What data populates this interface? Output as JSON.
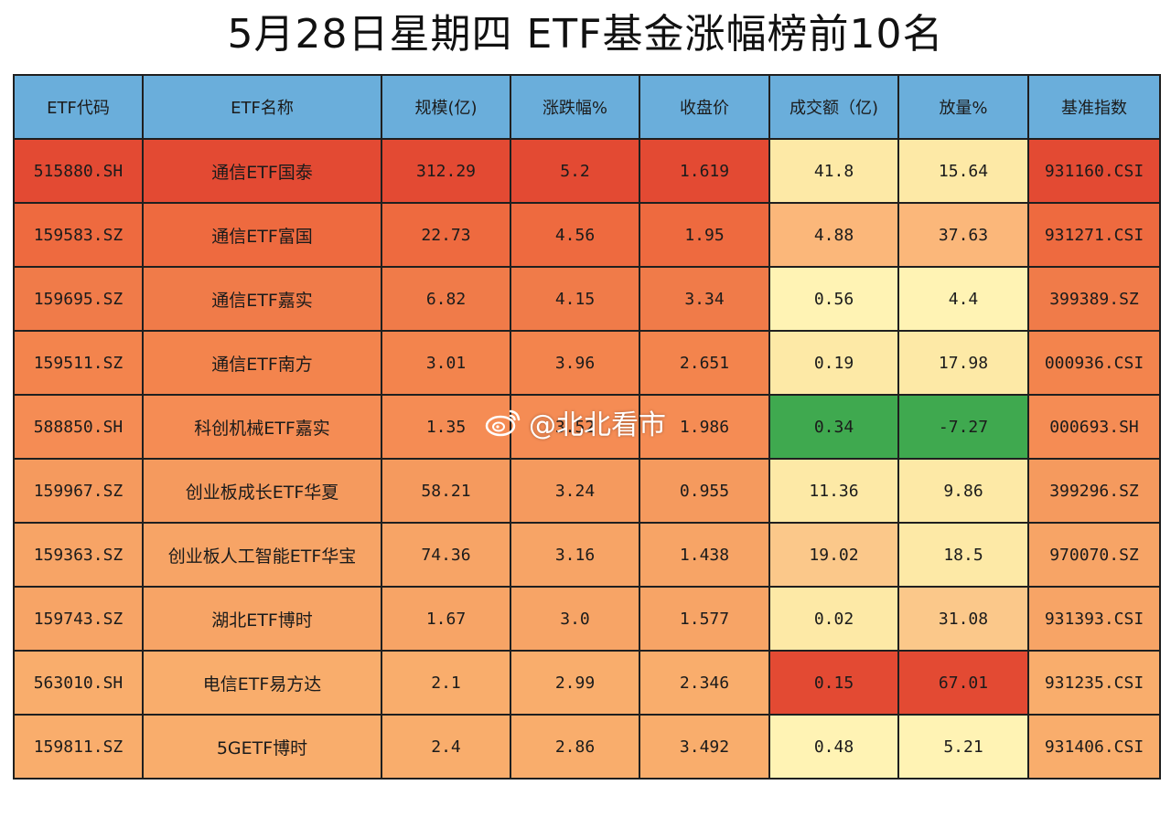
{
  "title": "5月28日星期四  ETF基金涨幅榜前10名",
  "watermark": "@北北看市",
  "chart_data": {
    "type": "table",
    "columns": [
      "ETF代码",
      "ETF名称",
      "规模(亿)",
      "涨跌幅%",
      "收盘价",
      "成交额（亿)",
      "放量%",
      "基准指数"
    ],
    "rows": [
      [
        "515880.SH",
        "通信ETF国泰",
        "312.29",
        "5.2",
        "1.619",
        "41.8",
        "15.64",
        "931160.CSI"
      ],
      [
        "159583.SZ",
        "通信ETF富国",
        "22.73",
        "4.56",
        "1.95",
        "4.88",
        "37.63",
        "931271.CSI"
      ],
      [
        "159695.SZ",
        "通信ETF嘉实",
        "6.82",
        "4.15",
        "3.34",
        "0.56",
        "4.4",
        "399389.SZ"
      ],
      [
        "159511.SZ",
        "通信ETF南方",
        "3.01",
        "3.96",
        "2.651",
        "0.19",
        "17.98",
        "000936.CSI"
      ],
      [
        "588850.SH",
        "科创机械ETF嘉实",
        "1.35",
        "3.52",
        "1.986",
        "0.34",
        "-7.27",
        "000693.SH"
      ],
      [
        "159967.SZ",
        "创业板成长ETF华夏",
        "58.21",
        "3.24",
        "0.955",
        "11.36",
        "9.86",
        "399296.SZ"
      ],
      [
        "159363.SZ",
        "创业板人工智能ETF华宝",
        "74.36",
        "3.16",
        "1.438",
        "19.02",
        "18.5",
        "970070.SZ"
      ],
      [
        "159743.SZ",
        "湖北ETF博时",
        "1.67",
        "3.0",
        "1.577",
        "0.02",
        "31.08",
        "931393.CSI"
      ],
      [
        "563010.SH",
        "电信ETF易方达",
        "2.1",
        "2.99",
        "2.346",
        "0.15",
        "67.01",
        "931235.CSI"
      ],
      [
        "159811.SZ",
        "5GETF博时",
        "2.4",
        "2.86",
        "3.492",
        "0.48",
        "5.21",
        "931406.CSI"
      ]
    ],
    "row_colors": [
      "#e34a33",
      "#ee6a3f",
      "#f07b49",
      "#f3844d",
      "#f58c54",
      "#f59a5e",
      "#f7a466",
      "#f7a466",
      "#f9ad6c",
      "#f9ad6c"
    ],
    "turnover_colors": [
      "#fde9a6",
      "#fbb77a",
      "#fff3b4",
      "#fde9a6",
      "#3fa94f",
      "#fde9a6",
      "#fbc88a",
      "#fde9a6",
      "#e34a33",
      "#fff3b4"
    ],
    "volume_colors": [
      "#fde9a6",
      "#fbb77a",
      "#fff3b4",
      "#fde9a6",
      "#3fa94f",
      "#fde9a6",
      "#fde9a6",
      "#fbc88a",
      "#e34a33",
      "#fff3b4"
    ],
    "header_color": "#6aaedb"
  }
}
